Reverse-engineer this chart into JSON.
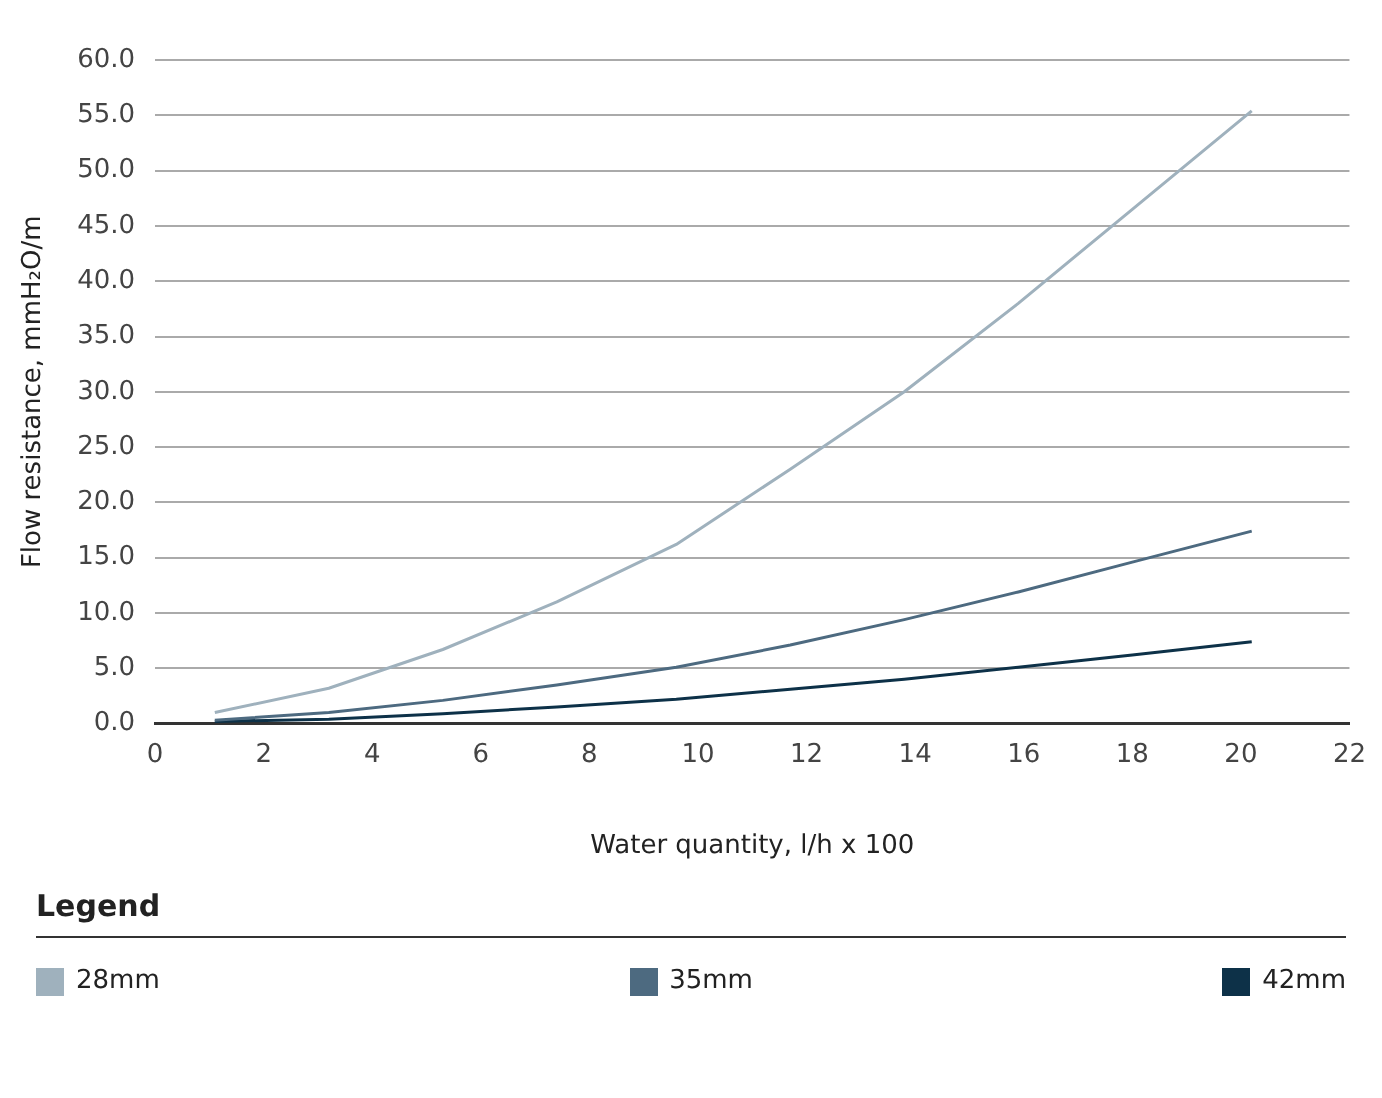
{
  "chart_data": {
    "type": "line",
    "xlabel": "Water quantity, l/h x 100",
    "ylabel": "Flow resistance, mmH₂O/m",
    "legend_title": "Legend",
    "legend": "bottom",
    "grid": "y",
    "marker": "none",
    "line_style": "solid",
    "x": [
      1.1,
      3.2,
      5.3,
      7.4,
      9.6,
      11.7,
      13.8,
      15.9,
      18.0,
      20.2
    ],
    "series": [
      {
        "name": "28mm",
        "color": "#9fb1bd",
        "values": [
          1.0,
          3.2,
          6.7,
          11.0,
          16.2,
          23.0,
          30.0,
          38.0,
          46.5,
          55.4
        ]
      },
      {
        "name": "35mm",
        "color": "#4d6a80",
        "values": [
          0.3,
          1.0,
          2.1,
          3.5,
          5.1,
          7.1,
          9.4,
          11.9,
          14.6,
          17.4
        ]
      },
      {
        "name": "42mm",
        "color": "#0d3148",
        "values": [
          0.2,
          0.4,
          0.9,
          1.5,
          2.2,
          3.1,
          4.0,
          5.1,
          6.2,
          7.4
        ]
      }
    ],
    "xlim": [
      0,
      22
    ],
    "xticks": [
      0,
      2,
      4,
      6,
      8,
      10,
      12,
      14,
      16,
      18,
      20,
      22
    ],
    "ylim": [
      0,
      60
    ],
    "yticks": [
      {
        "value": 0,
        "label": "0.0"
      },
      {
        "value": 5,
        "label": "5.0"
      },
      {
        "value": 10,
        "label": "10.0"
      },
      {
        "value": 15,
        "label": "15.0"
      },
      {
        "value": 20,
        "label": "20.0"
      },
      {
        "value": 25,
        "label": "25.0"
      },
      {
        "value": 30,
        "label": "30.0"
      },
      {
        "value": 35,
        "label": "35.0"
      },
      {
        "value": 40,
        "label": "40.0"
      },
      {
        "value": 45,
        "label": "45.0"
      },
      {
        "value": 50,
        "label": "50.0"
      },
      {
        "value": 55,
        "label": "55.0"
      },
      {
        "value": 60,
        "label": "60.0"
      }
    ]
  }
}
